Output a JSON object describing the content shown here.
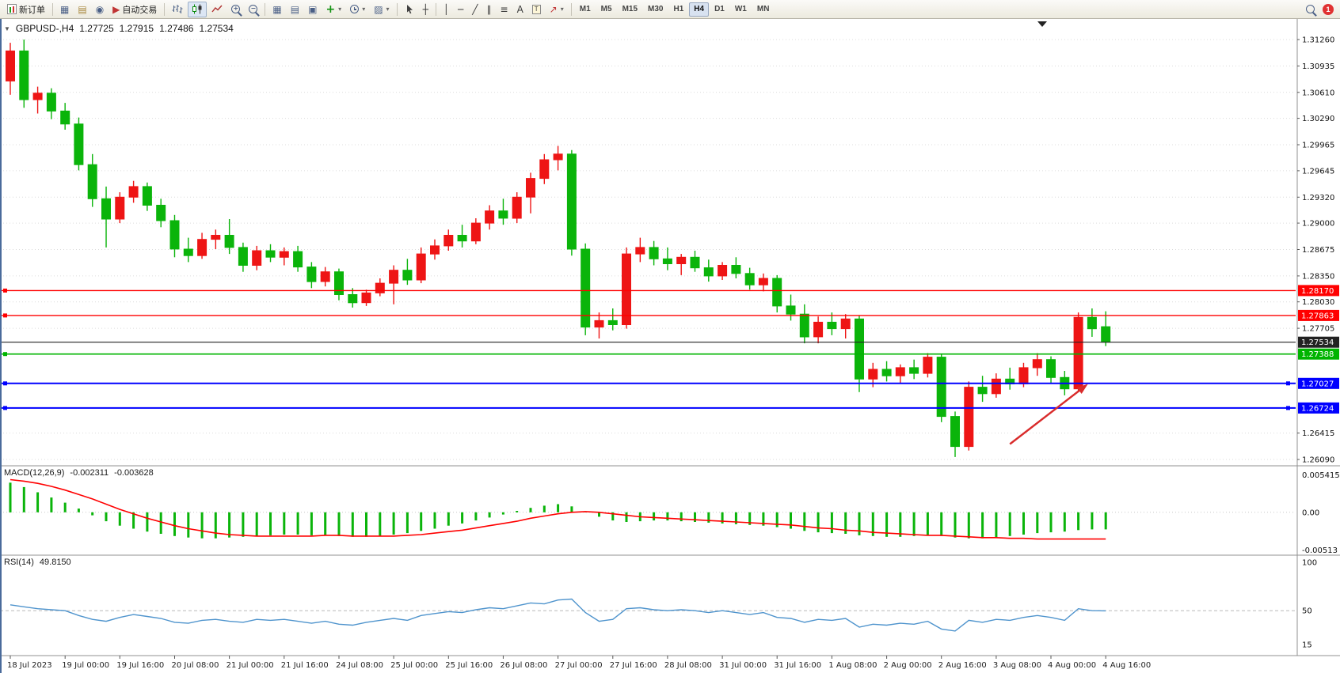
{
  "toolbar": {
    "new_order_label": "新订单",
    "auto_trading_label": "自动交易",
    "text_tool_label": "A",
    "timeframes": [
      "M1",
      "M5",
      "M15",
      "M30",
      "H1",
      "H4",
      "D1",
      "W1",
      "MN"
    ],
    "active_timeframe": "H4",
    "notification_count": "1"
  },
  "chart_header": {
    "symbol_period": "GBPUSD-,H4",
    "open": "1.27725",
    "high": "1.27915",
    "low": "1.27486",
    "close": "1.27534"
  },
  "chart_data": {
    "type": "candlestick",
    "symbol": "GBPUSD-",
    "period": "H4",
    "colors": {
      "bull": "#ee1515",
      "bear": "#0ab40a",
      "macd_hist": "#0ab40a",
      "macd_signal": "#ff0000",
      "rsi_line": "#4f94cd",
      "grid": "#dcdcdc"
    },
    "price_axis": {
      "max": 1.3126,
      "min": 1.2609,
      "labels": [
        "1.31260",
        "1.30935",
        "1.30610",
        "1.30290",
        "1.29965",
        "1.29645",
        "1.29320",
        "1.29000",
        "1.28675",
        "1.28350",
        "1.28030",
        "1.27705",
        "1.26415",
        "1.26090"
      ]
    },
    "time_labels": [
      {
        "bar": 0,
        "text": "18 Jul 2023"
      },
      {
        "bar": 4,
        "text": "19 Jul 00:00"
      },
      {
        "bar": 8,
        "text": "19 Jul 16:00"
      },
      {
        "bar": 12,
        "text": "20 Jul 08:00"
      },
      {
        "bar": 16,
        "text": "21 Jul 00:00"
      },
      {
        "bar": 20,
        "text": "21 Jul 16:00"
      },
      {
        "bar": 24,
        "text": "24 Jul 08:00"
      },
      {
        "bar": 28,
        "text": "25 Jul 00:00"
      },
      {
        "bar": 32,
        "text": "25 Jul 16:00"
      },
      {
        "bar": 36,
        "text": "26 Jul 08:00"
      },
      {
        "bar": 40,
        "text": "27 Jul 00:00"
      },
      {
        "bar": 44,
        "text": "27 Jul 16:00"
      },
      {
        "bar": 48,
        "text": "28 Jul 08:00"
      },
      {
        "bar": 52,
        "text": "31 Jul 00:00"
      },
      {
        "bar": 56,
        "text": "31 Jul 16:00"
      },
      {
        "bar": 60,
        "text": "1 Aug 08:00"
      },
      {
        "bar": 64,
        "text": "2 Aug 00:00"
      },
      {
        "bar": 68,
        "text": "2 Aug 16:00"
      },
      {
        "bar": 72,
        "text": "3 Aug 08:00"
      },
      {
        "bar": 76,
        "text": "4 Aug 00:00"
      },
      {
        "bar": 80,
        "text": "4 Aug 16:00"
      }
    ],
    "candles": [
      [
        1.3075,
        1.3122,
        1.3058,
        1.3112
      ],
      [
        1.3112,
        1.3126,
        1.3042,
        1.3052
      ],
      [
        1.3052,
        1.3068,
        1.3035,
        1.306
      ],
      [
        1.306,
        1.3066,
        1.3028,
        1.3038
      ],
      [
        1.3038,
        1.3048,
        1.3015,
        1.3022
      ],
      [
        1.3022,
        1.303,
        1.2965,
        1.2972
      ],
      [
        1.2972,
        1.2985,
        1.292,
        1.293
      ],
      [
        1.293,
        1.2945,
        1.287,
        1.2905
      ],
      [
        1.2905,
        1.2938,
        1.29,
        1.2932
      ],
      [
        1.2932,
        1.2952,
        1.2925,
        1.2945
      ],
      [
        1.2945,
        1.295,
        1.2915,
        1.2922
      ],
      [
        1.2922,
        1.293,
        1.2895,
        1.2903
      ],
      [
        1.2903,
        1.291,
        1.2858,
        1.2868
      ],
      [
        1.2868,
        1.2882,
        1.2852,
        1.286
      ],
      [
        1.286,
        1.2888,
        1.2856,
        1.288
      ],
      [
        1.288,
        1.2892,
        1.2868,
        1.2885
      ],
      [
        1.2885,
        1.2905,
        1.2862,
        1.287
      ],
      [
        1.287,
        1.2876,
        1.284,
        1.2848
      ],
      [
        1.2848,
        1.2872,
        1.2842,
        1.2866
      ],
      [
        1.2866,
        1.2874,
        1.2852,
        1.2858
      ],
      [
        1.2858,
        1.287,
        1.2848,
        1.2865
      ],
      [
        1.2865,
        1.2872,
        1.284,
        1.2846
      ],
      [
        1.2846,
        1.2852,
        1.282,
        1.2828
      ],
      [
        1.2828,
        1.2846,
        1.2822,
        1.284
      ],
      [
        1.284,
        1.2844,
        1.2805,
        1.2812
      ],
      [
        1.2812,
        1.282,
        1.2796,
        1.2802
      ],
      [
        1.2802,
        1.2818,
        1.2798,
        1.2814
      ],
      [
        1.2814,
        1.2832,
        1.281,
        1.2826
      ],
      [
        1.2826,
        1.2848,
        1.28,
        1.2842
      ],
      [
        1.2842,
        1.2856,
        1.2824,
        1.283
      ],
      [
        1.283,
        1.287,
        1.2826,
        1.2862
      ],
      [
        1.2862,
        1.288,
        1.2855,
        1.2872
      ],
      [
        1.2872,
        1.2892,
        1.2866,
        1.2885
      ],
      [
        1.2885,
        1.2898,
        1.287,
        1.2878
      ],
      [
        1.2878,
        1.2906,
        1.2874,
        1.29
      ],
      [
        1.29,
        1.2922,
        1.2892,
        1.2915
      ],
      [
        1.2915,
        1.293,
        1.2898,
        1.2906
      ],
      [
        1.2906,
        1.2938,
        1.29,
        1.2932
      ],
      [
        1.2932,
        1.2962,
        1.2912,
        1.2955
      ],
      [
        1.2955,
        1.2985,
        1.2948,
        1.2978
      ],
      [
        1.2978,
        1.2995,
        1.2965,
        1.2985
      ],
      [
        1.2985,
        1.299,
        1.286,
        1.2868
      ],
      [
        1.2868,
        1.2875,
        1.2762,
        1.2772
      ],
      [
        1.2772,
        1.279,
        1.2758,
        1.278
      ],
      [
        1.278,
        1.2795,
        1.2768,
        1.2775
      ],
      [
        1.2775,
        1.287,
        1.277,
        1.2862
      ],
      [
        1.2862,
        1.2882,
        1.2852,
        1.287
      ],
      [
        1.287,
        1.2878,
        1.2848,
        1.2856
      ],
      [
        1.2856,
        1.287,
        1.2842,
        1.285
      ],
      [
        1.285,
        1.2862,
        1.2836,
        1.2858
      ],
      [
        1.2858,
        1.2866,
        1.284,
        1.2845
      ],
      [
        1.2845,
        1.2855,
        1.2828,
        1.2835
      ],
      [
        1.2835,
        1.2852,
        1.283,
        1.2848
      ],
      [
        1.2848,
        1.2858,
        1.2832,
        1.2838
      ],
      [
        1.2838,
        1.2845,
        1.2818,
        1.2824
      ],
      [
        1.2824,
        1.2838,
        1.2816,
        1.2832
      ],
      [
        1.2832,
        1.2836,
        1.279,
        1.2798
      ],
      [
        1.2798,
        1.2812,
        1.278,
        1.2788
      ],
      [
        1.2788,
        1.28,
        1.2752,
        1.276
      ],
      [
        1.276,
        1.2785,
        1.2752,
        1.2778
      ],
      [
        1.2778,
        1.279,
        1.2762,
        1.277
      ],
      [
        1.277,
        1.2788,
        1.2758,
        1.2782
      ],
      [
        1.2782,
        1.2786,
        1.2692,
        1.2708
      ],
      [
        1.2708,
        1.2728,
        1.2698,
        1.272
      ],
      [
        1.272,
        1.273,
        1.2705,
        1.2712
      ],
      [
        1.2712,
        1.2726,
        1.2702,
        1.2722
      ],
      [
        1.2722,
        1.2732,
        1.2708,
        1.2715
      ],
      [
        1.2715,
        1.274,
        1.271,
        1.2735
      ],
      [
        1.2735,
        1.2738,
        1.2655,
        1.2662
      ],
      [
        1.2662,
        1.2668,
        1.2612,
        1.2625
      ],
      [
        1.2625,
        1.2705,
        1.262,
        1.2698
      ],
      [
        1.2698,
        1.2712,
        1.268,
        1.269
      ],
      [
        1.269,
        1.2715,
        1.2685,
        1.2708
      ],
      [
        1.2708,
        1.2722,
        1.2695,
        1.2702
      ],
      [
        1.2702,
        1.2728,
        1.2698,
        1.2722
      ],
      [
        1.2722,
        1.274,
        1.2712,
        1.2732
      ],
      [
        1.2732,
        1.2736,
        1.2702,
        1.271
      ],
      [
        1.271,
        1.2718,
        1.2688,
        1.2696
      ],
      [
        1.2696,
        1.279,
        1.2692,
        1.2784
      ],
      [
        1.2784,
        1.2795,
        1.276,
        1.277
      ],
      [
        1.27725,
        1.27915,
        1.27486,
        1.27534
      ]
    ],
    "hlines": [
      {
        "price": 1.2817,
        "label": "1.28170",
        "color": "#ff0000",
        "width": 1.4,
        "handles": "left"
      },
      {
        "price": 1.27863,
        "label": "1.27863",
        "color": "#ff0000",
        "width": 1.4,
        "handles": "left"
      },
      {
        "price": 1.27388,
        "label": "1.27388",
        "color": "#00b400",
        "width": 1.6,
        "handles": "left"
      },
      {
        "price": 1.27027,
        "label": "1.27027",
        "color": "#0000ff",
        "width": 2,
        "handles": "both"
      },
      {
        "price": 1.26724,
        "label": "1.26724",
        "color": "#0000ff",
        "width": 2,
        "handles": "both"
      }
    ],
    "current_price": {
      "price": 1.27534,
      "label": "1.27534",
      "color": "#222222"
    },
    "arrow": {
      "from_bar": 73,
      "from_price": 1.2628,
      "to_bar": 78.7,
      "to_price": 1.2702,
      "color": "#d92b2b"
    },
    "macd": {
      "name": "MACD(12,26,9)",
      "value": "-0.002311",
      "signal_value": "-0.003628",
      "axis": [
        "0.005415",
        "0.00",
        "-0.00513"
      ],
      "max": 0.005415,
      "min": -0.00513,
      "hist": [
        0.004,
        0.0034,
        0.0027,
        0.002,
        0.0013,
        0.0005,
        -0.0004,
        -0.0012,
        -0.0018,
        -0.0022,
        -0.0026,
        -0.0029,
        -0.0032,
        -0.0034,
        -0.0035,
        -0.0035,
        -0.0034,
        -0.0033,
        -0.0032,
        -0.0031,
        -0.003,
        -0.003,
        -0.0031,
        -0.0031,
        -0.0032,
        -0.0033,
        -0.0033,
        -0.0032,
        -0.003,
        -0.0028,
        -0.0025,
        -0.0022,
        -0.0018,
        -0.0015,
        -0.0011,
        -0.0007,
        -0.0003,
        0.0002,
        0.0006,
        0.0009,
        0.0011,
        0.0008,
        0.0001,
        -0.0006,
        -0.0011,
        -0.0013,
        -0.0012,
        -0.0011,
        -0.0011,
        -0.0012,
        -0.0013,
        -0.0014,
        -0.0015,
        -0.0016,
        -0.0017,
        -0.0018,
        -0.002,
        -0.0022,
        -0.0025,
        -0.0027,
        -0.0028,
        -0.0029,
        -0.0031,
        -0.0032,
        -0.0033,
        -0.0033,
        -0.0032,
        -0.0031,
        -0.0032,
        -0.0034,
        -0.0035,
        -0.0035,
        -0.0034,
        -0.0032,
        -0.003,
        -0.0028,
        -0.0027,
        -0.0026,
        -0.0024,
        -0.0023,
        -0.0023
      ],
      "signal": [
        0.0044,
        0.0042,
        0.0039,
        0.0035,
        0.003,
        0.0024,
        0.0018,
        0.0011,
        0.0004,
        -0.0002,
        -0.0008,
        -0.0013,
        -0.0018,
        -0.0022,
        -0.0025,
        -0.0028,
        -0.003,
        -0.0031,
        -0.0032,
        -0.0032,
        -0.0032,
        -0.0032,
        -0.0032,
        -0.0031,
        -0.0031,
        -0.0032,
        -0.0032,
        -0.0032,
        -0.0032,
        -0.0031,
        -0.003,
        -0.0028,
        -0.0026,
        -0.0024,
        -0.0021,
        -0.0018,
        -0.0015,
        -0.0012,
        -0.0008,
        -0.0005,
        -0.0002,
        0.0,
        0.0001,
        0.0,
        -0.0002,
        -0.0004,
        -0.0006,
        -0.0007,
        -0.0008,
        -0.0009,
        -0.001,
        -0.0011,
        -0.0012,
        -0.0013,
        -0.0014,
        -0.0015,
        -0.0016,
        -0.0017,
        -0.0019,
        -0.0021,
        -0.0022,
        -0.0024,
        -0.0025,
        -0.0027,
        -0.0028,
        -0.0029,
        -0.003,
        -0.0031,
        -0.0031,
        -0.0032,
        -0.0033,
        -0.0034,
        -0.0034,
        -0.0035,
        -0.0035,
        -0.0036,
        -0.0036,
        -0.0036,
        -0.0036,
        -0.0036,
        -0.0036
      ]
    },
    "rsi": {
      "name": "RSI(14)",
      "value": "49.8150",
      "axis": [
        "100",
        "50",
        "15"
      ],
      "max": 100,
      "min": 15,
      "level": 50,
      "values": [
        56,
        54,
        52,
        51,
        50,
        45,
        41,
        39,
        43,
        46,
        44,
        42,
        38,
        37,
        40,
        41,
        39,
        38,
        41,
        40,
        41,
        39,
        37,
        39,
        36,
        35,
        38,
        40,
        42,
        40,
        45,
        47,
        49,
        48,
        51,
        53,
        52,
        55,
        58,
        57,
        61,
        62,
        48,
        39,
        41,
        52,
        53,
        51,
        50,
        51,
        50,
        48,
        50,
        48,
        46,
        48,
        43,
        42,
        38,
        41,
        40,
        42,
        33,
        36,
        35,
        37,
        36,
        39,
        31,
        29,
        40,
        38,
        41,
        40,
        43,
        45,
        43,
        40,
        52,
        50,
        49.815
      ]
    }
  }
}
